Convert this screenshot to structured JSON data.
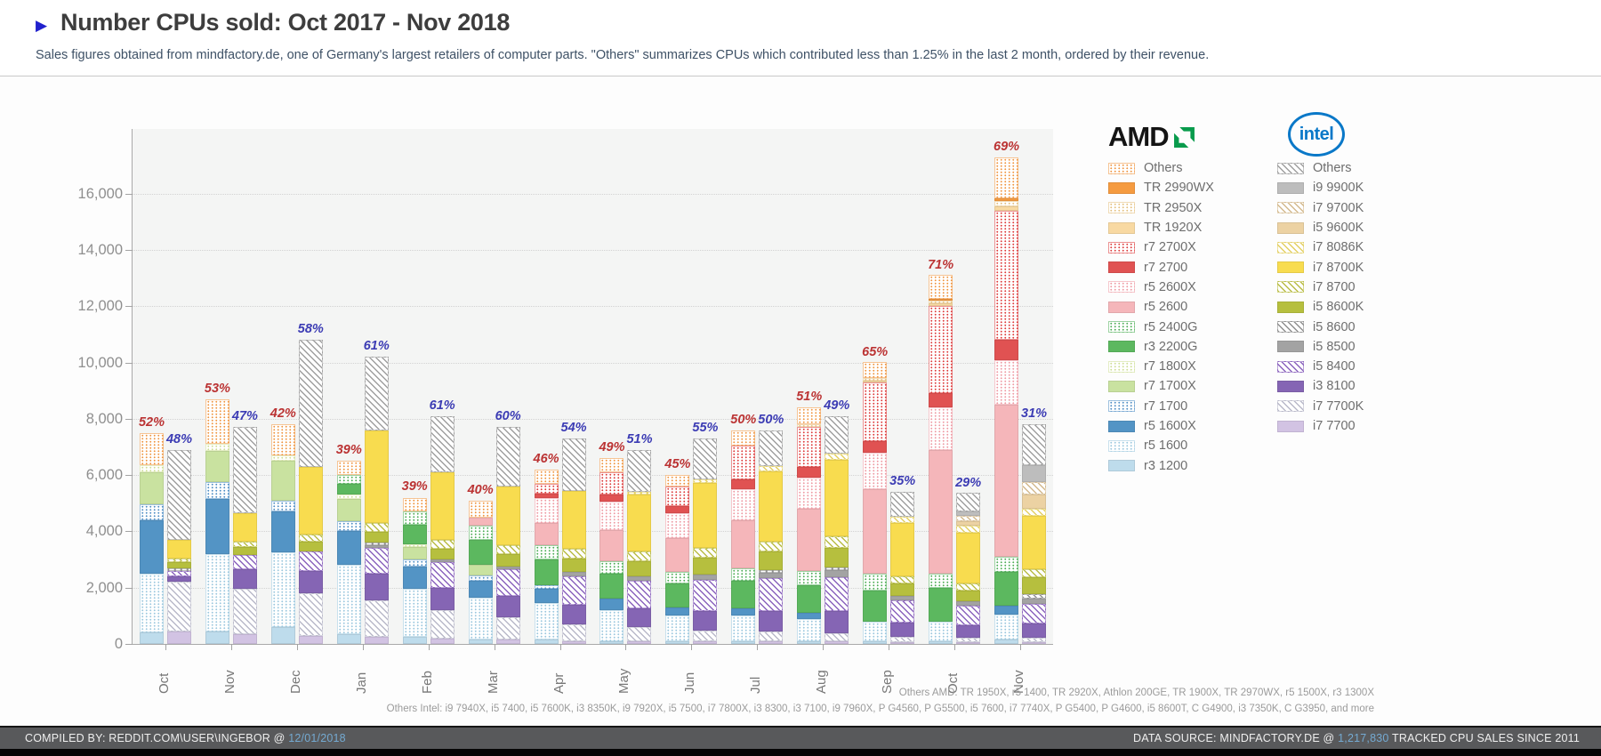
{
  "header": {
    "title": "Number CPUs sold: Oct 2017 - Nov 2018",
    "subtitle": "Sales figures obtained from mindfactory.de, one of Germany's largest retailers of computer parts. \"Others\" summarizes CPUs which contributed less than 1.25% in the last 2 month, ordered by their revenue.",
    "accent_color": "#2121cd"
  },
  "chart_data": {
    "type": "bar",
    "stacked": true,
    "title": "Number CPUs sold: Oct 2017 - Nov 2018",
    "categories": [
      "Oct",
      "Nov",
      "Dec",
      "Jan",
      "Feb",
      "Mar",
      "Apr",
      "May",
      "Jun",
      "Jul",
      "Aug",
      "Sep",
      "Oct",
      "Nov"
    ],
    "ylim": [
      0,
      18300
    ],
    "yticks": [
      0,
      2000,
      4000,
      6000,
      8000,
      10000,
      12000,
      14000,
      16000
    ],
    "grid": true,
    "legend_position": "right",
    "groups": [
      {
        "name": "AMD",
        "label_color": "#bb3333",
        "share_pct": [
          52,
          53,
          42,
          39,
          39,
          40,
          46,
          49,
          45,
          50,
          51,
          65,
          71,
          69
        ],
        "series": [
          {
            "name": "r3 1200",
            "color": "#bedcec",
            "pattern": "solid"
          },
          {
            "name": "r5 1600",
            "color": "#9cc8de",
            "pattern": "dots"
          },
          {
            "name": "r5 1600X",
            "color": "#5394c5",
            "pattern": "solid"
          },
          {
            "name": "r7 1700",
            "color": "#4f8ec4",
            "pattern": "dots"
          },
          {
            "name": "r7 1700X",
            "color": "#c9e2a0",
            "pattern": "solid"
          },
          {
            "name": "r7 1800X",
            "color": "#cede96",
            "pattern": "dots"
          },
          {
            "name": "r3 2200G",
            "color": "#5cb85f",
            "pattern": "solid"
          },
          {
            "name": "r5 2400G",
            "color": "#4fae58",
            "pattern": "dots"
          },
          {
            "name": "r5 2600",
            "color": "#f5b6ba",
            "pattern": "solid"
          },
          {
            "name": "r5 2600X",
            "color": "#ee9ba4",
            "pattern": "dots"
          },
          {
            "name": "r7 2700",
            "color": "#e05252",
            "pattern": "solid"
          },
          {
            "name": "r7 2700X",
            "color": "#dd3c3c",
            "pattern": "dots"
          },
          {
            "name": "TR 1920X",
            "color": "#f8d9a2",
            "pattern": "solid"
          },
          {
            "name": "TR 2950X",
            "color": "#e3bf7d",
            "pattern": "dots"
          },
          {
            "name": "TR 2990WX",
            "color": "#f59b40",
            "pattern": "solid"
          },
          {
            "name": "Others",
            "color": "#ef9540",
            "pattern": "dots"
          }
        ],
        "stacks": [
          [
            400,
            2100,
            1900,
            550,
            1150,
            250,
            0,
            0,
            0,
            0,
            0,
            0,
            0,
            0,
            0,
            1150
          ],
          [
            450,
            2750,
            1950,
            600,
            1100,
            250,
            0,
            0,
            0,
            0,
            0,
            0,
            0,
            0,
            0,
            1600
          ],
          [
            600,
            2650,
            1450,
            400,
            1400,
            200,
            0,
            0,
            0,
            0,
            0,
            0,
            0,
            0,
            0,
            1100
          ],
          [
            350,
            2450,
            1200,
            350,
            800,
            150,
            400,
            300,
            0,
            0,
            0,
            0,
            0,
            0,
            0,
            500
          ],
          [
            250,
            1700,
            800,
            250,
            450,
            100,
            700,
            450,
            0,
            0,
            0,
            0,
            0,
            0,
            0,
            500
          ],
          [
            150,
            1500,
            600,
            200,
            350,
            0,
            900,
            500,
            300,
            0,
            0,
            0,
            0,
            0,
            0,
            600
          ],
          [
            150,
            1300,
            500,
            150,
            0,
            0,
            900,
            500,
            800,
            900,
            150,
            350,
            0,
            0,
            0,
            500
          ],
          [
            100,
            1100,
            400,
            0,
            0,
            0,
            900,
            450,
            1100,
            1000,
            250,
            800,
            0,
            0,
            0,
            500
          ],
          [
            100,
            900,
            300,
            0,
            0,
            0,
            850,
            400,
            1200,
            900,
            250,
            700,
            0,
            0,
            0,
            400
          ],
          [
            100,
            900,
            250,
            0,
            0,
            0,
            1000,
            450,
            1700,
            1100,
            350,
            1200,
            0,
            0,
            0,
            550
          ],
          [
            100,
            800,
            200,
            0,
            0,
            0,
            1000,
            500,
            2200,
            1100,
            400,
            1400,
            0,
            100,
            0,
            600
          ],
          [
            100,
            700,
            0,
            0,
            0,
            0,
            1100,
            600,
            3000,
            1300,
            400,
            2100,
            50,
            100,
            0,
            550
          ],
          [
            100,
            700,
            0,
            0,
            0,
            0,
            1200,
            500,
            4400,
            1500,
            500,
            3100,
            100,
            100,
            50,
            850
          ],
          [
            150,
            900,
            300,
            0,
            0,
            0,
            1200,
            550,
            5400,
            1600,
            700,
            4600,
            150,
            200,
            100,
            1450
          ]
        ]
      },
      {
        "name": "Intel",
        "label_color": "#3c3cb4",
        "share_pct": [
          48,
          47,
          58,
          61,
          61,
          60,
          54,
          51,
          55,
          50,
          49,
          35,
          29,
          31
        ],
        "series": [
          {
            "name": "i7 7700",
            "color": "#d2c3e3",
            "pattern": "solid"
          },
          {
            "name": "i7 7700K",
            "color": "#b9b9c9",
            "pattern": "hatch"
          },
          {
            "name": "i3 8100",
            "color": "#8565b4",
            "pattern": "solid"
          },
          {
            "name": "i5 8400",
            "color": "#8a63bd",
            "pattern": "hatch"
          },
          {
            "name": "i5 8500",
            "color": "#a3a3a3",
            "pattern": "solid"
          },
          {
            "name": "i5 8600",
            "color": "#8f8f8f",
            "pattern": "hatch"
          },
          {
            "name": "i5 8600K",
            "color": "#b6bf3e",
            "pattern": "solid"
          },
          {
            "name": "i7 8700",
            "color": "#b9bc45",
            "pattern": "hatch"
          },
          {
            "name": "i7 8700K",
            "color": "#f8dc4f",
            "pattern": "solid"
          },
          {
            "name": "i7 8086K",
            "color": "#e3cf62",
            "pattern": "hatch"
          },
          {
            "name": "i5 9600K",
            "color": "#ecd2a3",
            "pattern": "solid"
          },
          {
            "name": "i7 9700K",
            "color": "#d3b98d",
            "pattern": "hatch"
          },
          {
            "name": "i9 9900K",
            "color": "#bdbdbd",
            "pattern": "solid"
          },
          {
            "name": "Others",
            "color": "#9f9f9f",
            "pattern": "hatch"
          }
        ],
        "stacks": [
          [
            450,
            1750,
            200,
            200,
            0,
            100,
            200,
            150,
            650,
            0,
            0,
            0,
            0,
            3200
          ],
          [
            350,
            1600,
            700,
            500,
            0,
            0,
            300,
            200,
            1000,
            0,
            0,
            0,
            0,
            3050
          ],
          [
            300,
            1500,
            800,
            700,
            0,
            0,
            350,
            250,
            2400,
            0,
            0,
            0,
            0,
            4500
          ],
          [
            250,
            1300,
            950,
            900,
            100,
            100,
            400,
            300,
            3300,
            0,
            0,
            0,
            0,
            2600
          ],
          [
            200,
            1000,
            800,
            900,
            100,
            0,
            400,
            300,
            2400,
            0,
            0,
            0,
            0,
            2000
          ],
          [
            150,
            800,
            750,
            950,
            100,
            0,
            450,
            300,
            2100,
            0,
            0,
            0,
            0,
            2100
          ],
          [
            100,
            600,
            700,
            1000,
            150,
            0,
            500,
            350,
            2050,
            0,
            0,
            0,
            0,
            1850
          ],
          [
            100,
            500,
            650,
            1000,
            150,
            0,
            550,
            350,
            2000,
            100,
            0,
            0,
            0,
            1500
          ],
          [
            80,
            400,
            700,
            1100,
            180,
            0,
            600,
            350,
            2300,
            150,
            0,
            0,
            0,
            1440
          ],
          [
            80,
            350,
            750,
            1150,
            200,
            100,
            650,
            350,
            2500,
            200,
            0,
            0,
            0,
            1270
          ],
          [
            80,
            300,
            800,
            1200,
            250,
            100,
            700,
            400,
            2700,
            250,
            0,
            0,
            0,
            1320
          ],
          [
            50,
            200,
            500,
            800,
            150,
            0,
            450,
            250,
            1900,
            200,
            0,
            0,
            0,
            900
          ],
          [
            50,
            150,
            450,
            700,
            150,
            0,
            400,
            250,
            1800,
            250,
            150,
            200,
            150,
            650
          ],
          [
            50,
            150,
            500,
            700,
            200,
            150,
            600,
            300,
            1900,
            250,
            500,
            450,
            600,
            1450
          ]
        ]
      }
    ]
  },
  "legend": {
    "amd_title": "AMD",
    "intel_title": "intel"
  },
  "footnotes": {
    "amd": "Others AMD: TR 1950X, r5 1400, TR 2920X, Athlon 200GE, TR 1900X, TR 2970WX, r5 1500X, r3 1300X",
    "intel": "Others Intel: i9 7940X, i5 7400, i5 7600K, i3 8350K, i9 7920X, i5 7500, i7 7800X, i3 8300, i3 7100, i9 7960X, P G4560, P G5500, i5 7600, i7 7740X, P G5400, P G4600, i5 8600T, C G4900, i3 7350K, C G3950, and more"
  },
  "statusbar": {
    "left_prefix": "COMPILED BY: REDDIT.COM\\USER\\INGEBOR @",
    "left_value": "12/01/2018",
    "right_prefix": "DATA SOURCE: MINDFACTORY.DE @",
    "right_value": "1,217,830",
    "right_suffix": "TRACKED CPU SALES SINCE 2011"
  }
}
